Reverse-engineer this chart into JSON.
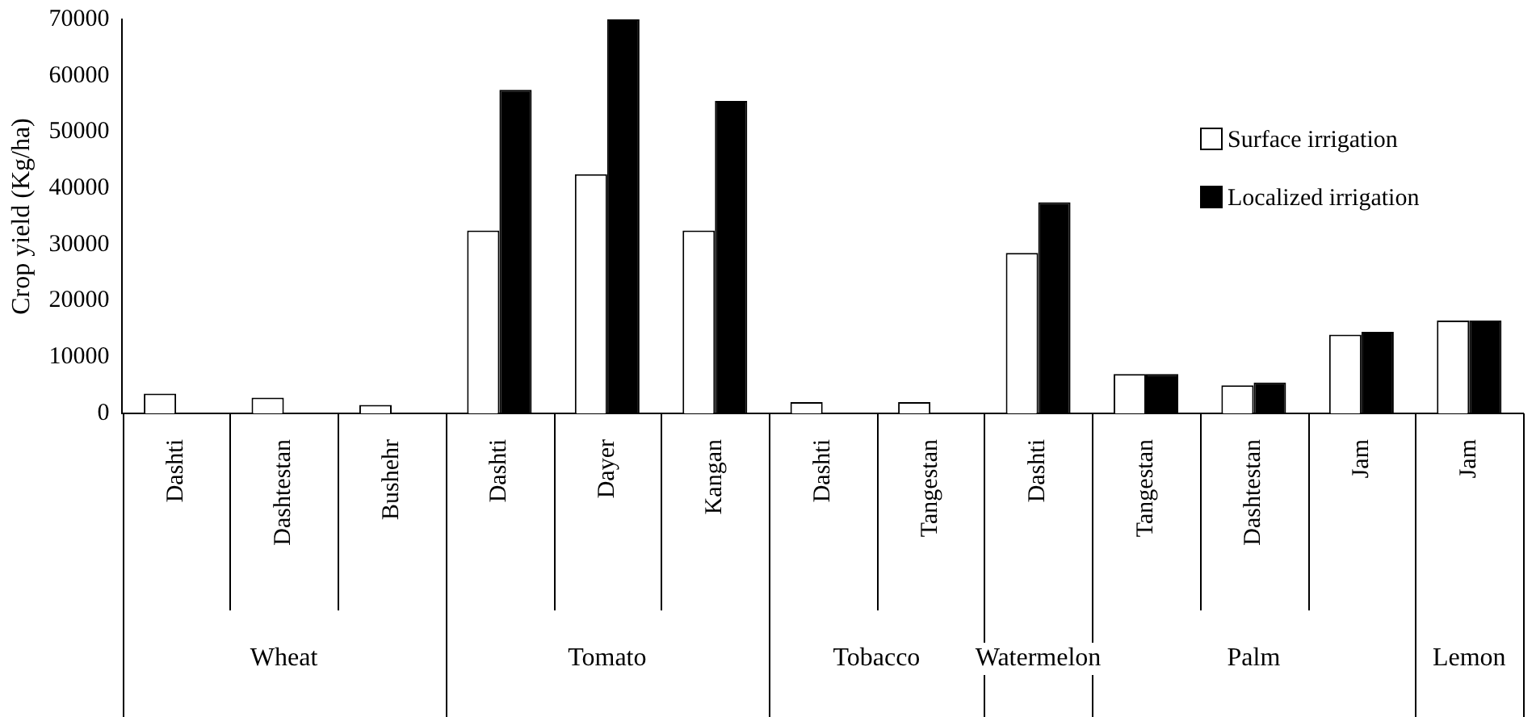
{
  "chart_data": {
    "type": "bar",
    "ylabel": "Crop yield (Kg/ha)",
    "categories": [
      "Dashti",
      "Dashtestan",
      "Bushehr",
      "Dashti",
      "Dayer",
      "Kangan",
      "Dashti",
      "Tangestan",
      "Dashti",
      "Tangestan",
      "Dashtestan",
      "Jam",
      "Jam"
    ],
    "series": [
      {
        "name": "Surface irrigation",
        "color": "#ffffff",
        "values": [
          3500,
          2800,
          1500,
          32500,
          42500,
          32500,
          2000,
          2000,
          28500,
          7000,
          5000,
          14000,
          16500
        ]
      },
      {
        "name": "Localized irrigation",
        "color": "#000000",
        "values": [
          null,
          null,
          null,
          57500,
          70000,
          55500,
          null,
          null,
          37500,
          7000,
          5500,
          14500,
          16500
        ]
      }
    ],
    "ylim": [
      0,
      70000
    ],
    "yticks": [
      0,
      10000,
      20000,
      30000,
      40000,
      50000,
      60000,
      70000
    ],
    "grid": false,
    "legend": "top right",
    "annotations": [
      "Wheat",
      "Tomato",
      "Tobacco",
      "Watermelon",
      "Palm",
      "Lemon"
    ]
  }
}
